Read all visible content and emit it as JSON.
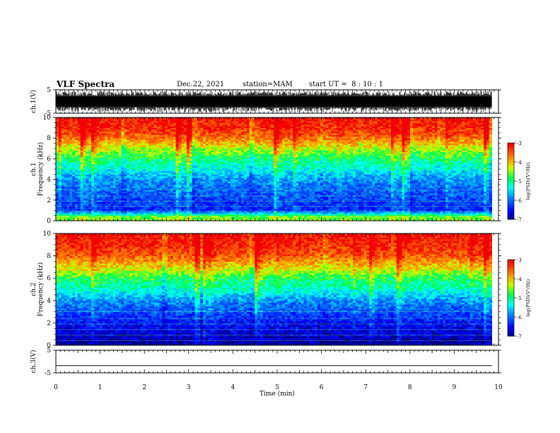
{
  "header": {
    "title": "VLF Spectra",
    "date": "Dec.22, 2021",
    "station": "station=MAM",
    "start": "start UT =  8 : 10 : 1"
  },
  "chart_data": [
    {
      "type": "line",
      "title": "",
      "ylabel": "ch.1(V)",
      "ylim": [
        -5,
        5
      ],
      "yticks": [
        "5",
        "-5"
      ],
      "xlim": [
        0,
        10
      ],
      "description_visible": "dense noisy waveform spanning most of the range",
      "trace_range": [
        -4.5,
        4.5
      ]
    },
    {
      "type": "heatmap",
      "ylabel": [
        "ch.1",
        "Frequency  (kHz)"
      ],
      "ylim": [
        0,
        10
      ],
      "yticks": [
        "0",
        "2",
        "4",
        "6",
        "8",
        "10"
      ],
      "xlim": [
        0,
        10
      ],
      "data_end_min": 9.85,
      "spectrum_profile_log_psd": [
        {
          "f": 0.4,
          "v": -4.5
        },
        {
          "f": 1,
          "v": -6.3
        },
        {
          "f": 2,
          "v": -6.2
        },
        {
          "f": 3,
          "v": -6.0
        },
        {
          "f": 4,
          "v": -5.8
        },
        {
          "f": 5,
          "v": -5.3
        },
        {
          "f": 6,
          "v": -4.9
        },
        {
          "f": 7,
          "v": -4.3
        },
        {
          "f": 8,
          "v": -3.6
        },
        {
          "f": 9,
          "v": -3.2
        },
        {
          "f": 10,
          "v": -3.1
        }
      ],
      "colorbar": {
        "label": "log(PSD)(V²/Hz)",
        "range": [
          -7,
          -3
        ],
        "ticks": [
          "-3",
          "-4",
          "-5",
          "-6",
          "-7"
        ]
      }
    },
    {
      "type": "heatmap",
      "ylabel": [
        "ch.2",
        "Frequency  (kHz)"
      ],
      "ylim": [
        0,
        10
      ],
      "yticks": [
        "0",
        "2",
        "4",
        "6",
        "8",
        "10"
      ],
      "xlim": [
        0,
        10
      ],
      "data_end_min": 9.85,
      "spectrum_profile_log_psd": [
        {
          "f": 0.3,
          "v": -6.9
        },
        {
          "f": 1,
          "v": -6.7
        },
        {
          "f": 2,
          "v": -6.5
        },
        {
          "f": 3,
          "v": -6.1
        },
        {
          "f": 4,
          "v": -5.8
        },
        {
          "f": 5,
          "v": -5.2
        },
        {
          "f": 6,
          "v": -4.8
        },
        {
          "f": 7,
          "v": -4.1
        },
        {
          "f": 8,
          "v": -3.5
        },
        {
          "f": 9,
          "v": -3.2
        },
        {
          "f": 10,
          "v": -3.1
        }
      ],
      "colorbar": {
        "label": "log(PSD)(V²/Hz)",
        "range": [
          -7,
          -3
        ],
        "ticks": [
          "-3",
          "-4",
          "-5",
          "-6",
          "-7"
        ]
      }
    },
    {
      "type": "line",
      "ylabel": "ch.3(V)",
      "ylim": [
        -5,
        5
      ],
      "yticks": [
        "5",
        "-5"
      ],
      "xlim": [
        0,
        10
      ],
      "xlabel": "Time  (min)",
      "xticks": [
        "0",
        "1",
        "2",
        "3",
        "4",
        "5",
        "6",
        "7",
        "8",
        "9",
        "10"
      ],
      "trace_value": -1.8
    }
  ]
}
